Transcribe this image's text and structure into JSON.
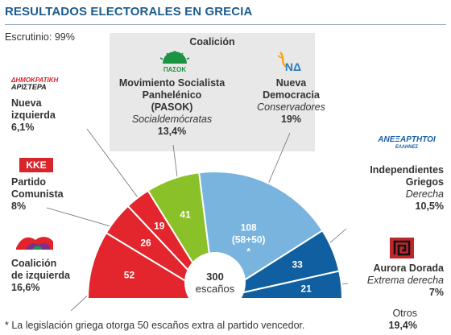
{
  "title": "RESULTADOS ELECTORALES EN GRECIA",
  "scrutiny": "Escrutinio: 99%",
  "coalition_title": "Coalición",
  "total_seats": "300",
  "seats_word": "escaños",
  "footnote": "* La legislación griega otorga 50 escaños extra al partido vencedor.",
  "colors": {
    "red": "#e3262d",
    "green": "#8bc128",
    "lightblue": "#79b4de",
    "darkblue": "#105fa0",
    "title": "#1b5c8c"
  },
  "chart_data": {
    "type": "pie",
    "total": 300,
    "order": "left-to-right semicircle",
    "segments": [
      {
        "party": "Coalición de izquierda",
        "seats": 52,
        "label": "52",
        "percent": "16,6%",
        "color": "#e3262d"
      },
      {
        "party": "Partido Comunista",
        "seats": 26,
        "label": "26",
        "percent": "8%",
        "color": "#e3262d"
      },
      {
        "party": "Nueva izquierda",
        "seats": 19,
        "label": "19",
        "percent": "6,1%",
        "color": "#e3262d"
      },
      {
        "party": "Movimiento Socialista Panhelénico (PASOK)",
        "seats": 41,
        "label": "41",
        "percent": "13,4%",
        "color": "#8bc128"
      },
      {
        "party": "Nueva Democracia",
        "seats": 108,
        "label": "108",
        "sublabel": "(58+50)",
        "mark": "*",
        "percent": "19%",
        "color": "#79b4de"
      },
      {
        "party": "Independientes Griegos",
        "seats": 33,
        "label": "33",
        "percent": "10,5%",
        "color": "#105fa0"
      },
      {
        "party": "Aurora Dorada",
        "seats": 21,
        "label": "21",
        "percent": "7%",
        "color": "#105fa0"
      }
    ]
  },
  "parties": {
    "nueva_izquierda": {
      "logo_text_1": "ΔΗΜΟΚΡΑΤΙΚΗ",
      "logo_text_2": "ΑΡΙΣΤΕΡΑ",
      "name_1": "Nueva",
      "name_2": "izquierda",
      "percent": "6,1%"
    },
    "kke": {
      "logo_text": "ΚΚΕ",
      "name_1": "Partido",
      "name_2": "Comunista",
      "percent": "8%"
    },
    "coalicion_izquierda": {
      "name_1": "Coalición",
      "name_2": "de izquierda",
      "percent": "16,6%"
    },
    "pasok": {
      "logo_text": "ΠΑΣΟΚ",
      "name_1": "Movimiento Socialista",
      "name_2": "Panhelénico",
      "name_3": "(PASOK)",
      "ideology": "Socialdemócratas",
      "percent": "13,4%"
    },
    "nd": {
      "logo_text": "ΝΔ",
      "name_1": "Nueva",
      "name_2": "Democracia",
      "ideology": "Conservadores",
      "percent": "19%"
    },
    "independientes": {
      "logo_text_1": "ΑΝΕΞΑΡΤΗΤΟΙ",
      "logo_text_2": "ΕΛΛΗΝΕΣ",
      "name_1": "Independientes",
      "name_2": "Griegos",
      "ideology": "Derecha",
      "percent": "10,5%"
    },
    "aurora": {
      "name_1": "Aurora Dorada",
      "ideology": "Extrema derecha",
      "percent": "7%"
    },
    "otros": {
      "name_1": "Otros",
      "percent": "19,4%"
    }
  }
}
